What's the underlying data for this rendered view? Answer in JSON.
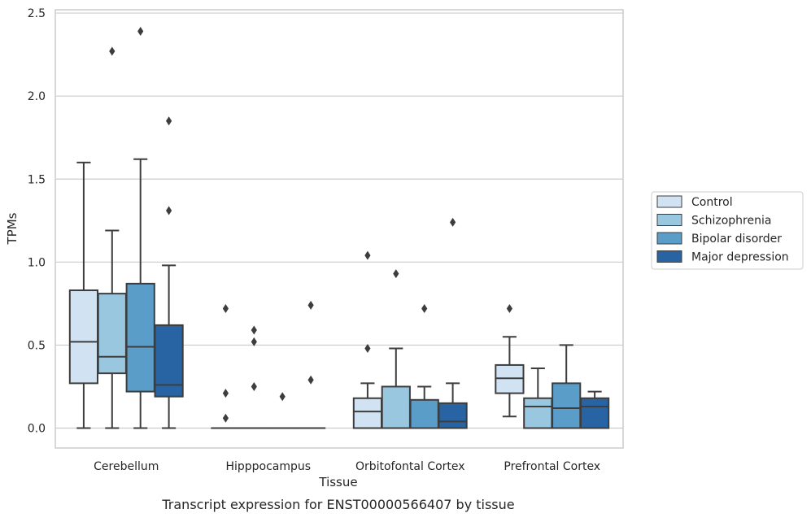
{
  "chart_data": {
    "type": "box",
    "title": "Transcript expression for ENST00000566407 by tissue",
    "xlabel": "Tissue",
    "ylabel": "TPMs",
    "ylim": [
      -0.12,
      2.52
    ],
    "yticks": [
      0.0,
      0.5,
      1.0,
      1.5,
      2.0,
      2.5
    ],
    "ytick_labels": [
      "0.0",
      "0.5",
      "1.0",
      "1.5",
      "2.0",
      "2.5"
    ],
    "grid": true,
    "legend_position": "right",
    "categories": [
      "Cerebellum",
      "Hipppocampus",
      "Orbitofontal Cortex",
      "Prefrontal Cortex"
    ],
    "series": [
      {
        "name": "Control",
        "color": "#d1e2f2",
        "boxes": [
          {
            "q1": 0.27,
            "median": 0.52,
            "q3": 0.83,
            "whisker_low": 0.0,
            "whisker_high": 1.6,
            "outliers": []
          },
          {
            "q1": 0.0,
            "median": 0.0,
            "q3": 0.0,
            "whisker_low": 0.0,
            "whisker_high": 0.0,
            "outliers": [
              0.72,
              0.21,
              0.06
            ]
          },
          {
            "q1": 0.0,
            "median": 0.1,
            "q3": 0.18,
            "whisker_low": 0.0,
            "whisker_high": 0.27,
            "outliers": [
              1.04,
              0.48
            ]
          },
          {
            "q1": 0.21,
            "median": 0.3,
            "q3": 0.38,
            "whisker_low": 0.07,
            "whisker_high": 0.55,
            "outliers": [
              0.72
            ]
          }
        ]
      },
      {
        "name": "Schizophrenia",
        "color": "#9ac7e0",
        "boxes": [
          {
            "q1": 0.33,
            "median": 0.43,
            "q3": 0.81,
            "whisker_low": 0.0,
            "whisker_high": 1.19,
            "outliers": [
              2.27
            ]
          },
          {
            "q1": 0.0,
            "median": 0.0,
            "q3": 0.0,
            "whisker_low": 0.0,
            "whisker_high": 0.0,
            "outliers": [
              0.59,
              0.52,
              0.25
            ]
          },
          {
            "q1": 0.0,
            "median": 0.0,
            "q3": 0.25,
            "whisker_low": 0.0,
            "whisker_high": 0.48,
            "outliers": [
              0.93
            ]
          },
          {
            "q1": 0.0,
            "median": 0.13,
            "q3": 0.18,
            "whisker_low": 0.0,
            "whisker_high": 0.36,
            "outliers": []
          }
        ]
      },
      {
        "name": "Bipolar disorder",
        "color": "#5a9dc9",
        "boxes": [
          {
            "q1": 0.22,
            "median": 0.49,
            "q3": 0.87,
            "whisker_low": 0.0,
            "whisker_high": 1.62,
            "outliers": [
              2.39
            ]
          },
          {
            "q1": 0.0,
            "median": 0.0,
            "q3": 0.0,
            "whisker_low": 0.0,
            "whisker_high": 0.0,
            "outliers": [
              0.19
            ]
          },
          {
            "q1": 0.0,
            "median": 0.0,
            "q3": 0.17,
            "whisker_low": 0.0,
            "whisker_high": 0.25,
            "outliers": [
              0.72
            ]
          },
          {
            "q1": 0.0,
            "median": 0.12,
            "q3": 0.27,
            "whisker_low": 0.0,
            "whisker_high": 0.5,
            "outliers": []
          }
        ]
      },
      {
        "name": "Major depression",
        "color": "#2864a4",
        "boxes": [
          {
            "q1": 0.19,
            "median": 0.26,
            "q3": 0.62,
            "whisker_low": 0.0,
            "whisker_high": 0.98,
            "outliers": [
              1.85,
              1.31
            ]
          },
          {
            "q1": 0.0,
            "median": 0.0,
            "q3": 0.0,
            "whisker_low": 0.0,
            "whisker_high": 0.0,
            "outliers": [
              0.74,
              0.29
            ]
          },
          {
            "q1": 0.0,
            "median": 0.04,
            "q3": 0.15,
            "whisker_low": 0.0,
            "whisker_high": 0.27,
            "outliers": [
              1.24
            ]
          },
          {
            "q1": 0.0,
            "median": 0.13,
            "q3": 0.18,
            "whisker_low": 0.0,
            "whisker_high": 0.22,
            "outliers": []
          }
        ]
      }
    ],
    "colors": {
      "grid": "#cccccc",
      "frame": "#cccccc",
      "line": "#3d3d3d"
    }
  }
}
